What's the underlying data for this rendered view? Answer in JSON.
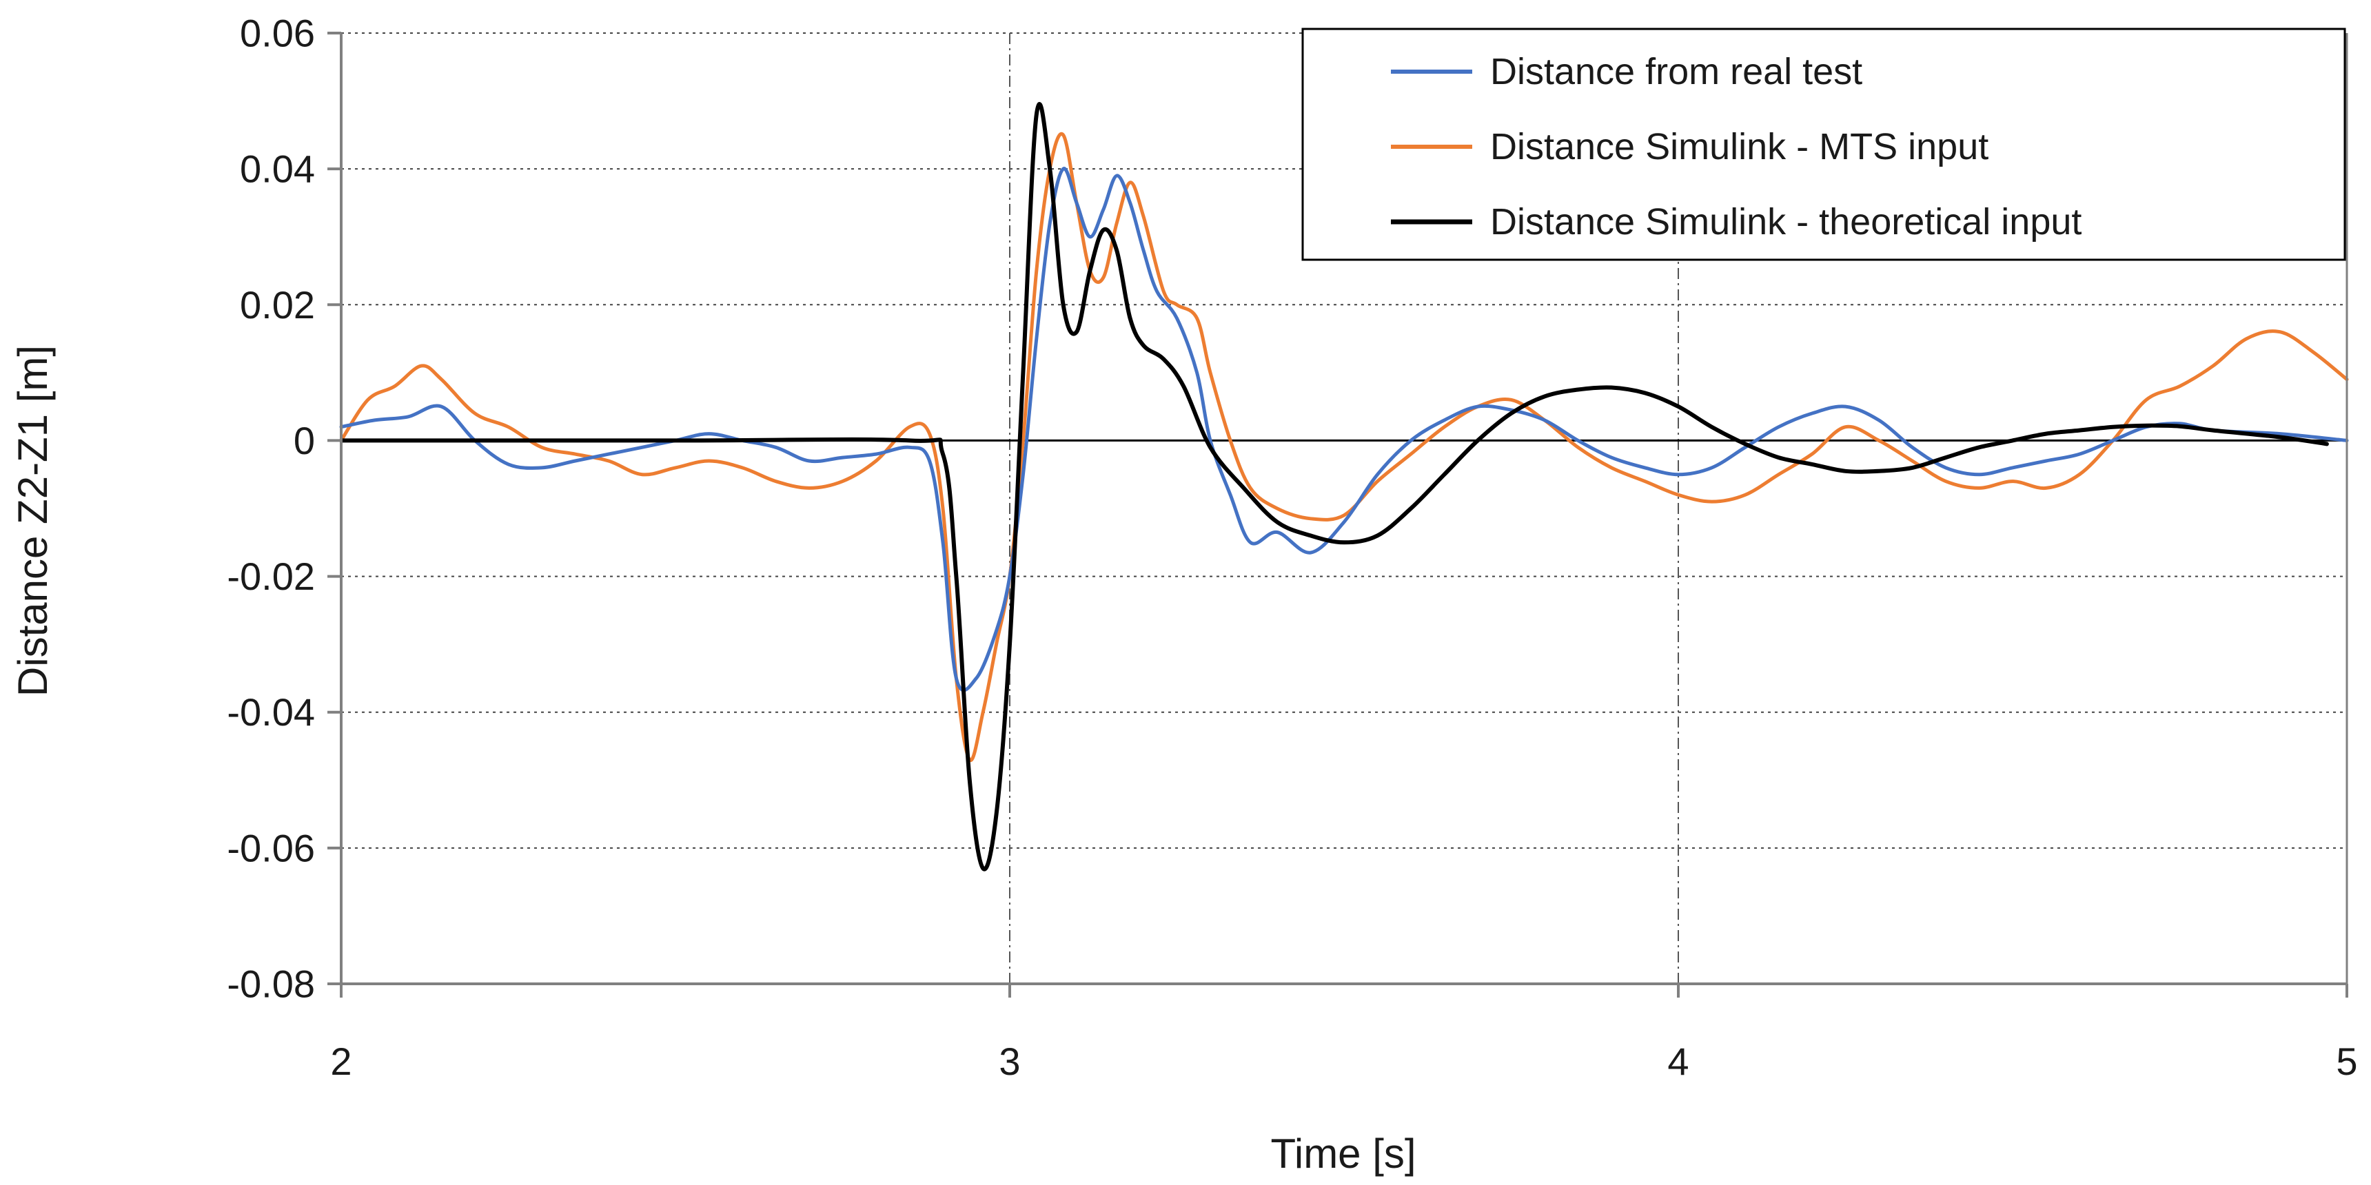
{
  "chart_data": {
    "type": "line",
    "title": "",
    "xlabel": "Time [s]",
    "ylabel": "Distance Z2-Z1 [m]",
    "xlim": [
      2,
      5
    ],
    "ylim": [
      -0.08,
      0.06
    ],
    "xticks": [
      2,
      3,
      4,
      5
    ],
    "xtick_labels": [
      "2",
      "3",
      "4",
      "5"
    ],
    "yticks": [
      0.06,
      0.04,
      0.02,
      0,
      -0.02,
      -0.04,
      -0.06,
      -0.08
    ],
    "ytick_labels": [
      "0.06",
      "0.04",
      "0.02",
      "0",
      "-0.02",
      "-0.04",
      "-0.06",
      "-0.08"
    ],
    "grid": {
      "horizontal": "dotted",
      "vertical": "dash-dot"
    },
    "legend": {
      "placement": "top-right"
    },
    "series": [
      {
        "name": "Distance from real test",
        "color": "#4472C4",
        "points": [
          [
            2.0,
            0.002
          ],
          [
            2.05,
            0.003
          ],
          [
            2.1,
            0.0035
          ],
          [
            2.15,
            0.005
          ],
          [
            2.2,
            0.0
          ],
          [
            2.25,
            -0.0035
          ],
          [
            2.3,
            -0.004
          ],
          [
            2.35,
            -0.003
          ],
          [
            2.4,
            -0.002
          ],
          [
            2.45,
            -0.001
          ],
          [
            2.5,
            0.0
          ],
          [
            2.55,
            0.001
          ],
          [
            2.6,
            0.0
          ],
          [
            2.65,
            -0.001
          ],
          [
            2.7,
            -0.003
          ],
          [
            2.75,
            -0.0025
          ],
          [
            2.8,
            -0.002
          ],
          [
            2.85,
            -0.001
          ],
          [
            2.88,
            -0.003
          ],
          [
            2.9,
            -0.015
          ],
          [
            2.92,
            -0.035
          ],
          [
            2.95,
            -0.035
          ],
          [
            2.98,
            -0.028
          ],
          [
            3.0,
            -0.02
          ],
          [
            3.02,
            -0.005
          ],
          [
            3.04,
            0.015
          ],
          [
            3.06,
            0.032
          ],
          [
            3.08,
            0.04
          ],
          [
            3.1,
            0.035
          ],
          [
            3.12,
            0.03
          ],
          [
            3.14,
            0.034
          ],
          [
            3.16,
            0.039
          ],
          [
            3.18,
            0.035
          ],
          [
            3.2,
            0.028
          ],
          [
            3.22,
            0.022
          ],
          [
            3.25,
            0.018
          ],
          [
            3.28,
            0.01
          ],
          [
            3.3,
            0.0
          ],
          [
            3.33,
            -0.008
          ],
          [
            3.36,
            -0.015
          ],
          [
            3.4,
            -0.0135
          ],
          [
            3.45,
            -0.0165
          ],
          [
            3.5,
            -0.012
          ],
          [
            3.55,
            -0.005
          ],
          [
            3.6,
            0.0
          ],
          [
            3.65,
            0.003
          ],
          [
            3.7,
            0.005
          ],
          [
            3.75,
            0.0045
          ],
          [
            3.8,
            0.003
          ],
          [
            3.85,
            0.0
          ],
          [
            3.9,
            -0.0025
          ],
          [
            3.95,
            -0.004
          ],
          [
            4.0,
            -0.005
          ],
          [
            4.05,
            -0.004
          ],
          [
            4.1,
            -0.001
          ],
          [
            4.15,
            0.002
          ],
          [
            4.2,
            0.004
          ],
          [
            4.25,
            0.005
          ],
          [
            4.3,
            0.003
          ],
          [
            4.35,
            -0.001
          ],
          [
            4.4,
            -0.004
          ],
          [
            4.45,
            -0.005
          ],
          [
            4.5,
            -0.004
          ],
          [
            4.55,
            -0.003
          ],
          [
            4.6,
            -0.002
          ],
          [
            4.65,
            0.0
          ],
          [
            4.7,
            0.002
          ],
          [
            4.75,
            0.0025
          ],
          [
            4.8,
            0.0015
          ],
          [
            4.9,
            0.001
          ],
          [
            5.0,
            0.0
          ]
        ]
      },
      {
        "name": "Distance Simulink - MTS input",
        "color": "#ED7D31",
        "points": [
          [
            2.0,
            0.0
          ],
          [
            2.04,
            0.006
          ],
          [
            2.08,
            0.008
          ],
          [
            2.12,
            0.011
          ],
          [
            2.15,
            0.009
          ],
          [
            2.2,
            0.004
          ],
          [
            2.25,
            0.002
          ],
          [
            2.3,
            -0.001
          ],
          [
            2.35,
            -0.002
          ],
          [
            2.4,
            -0.003
          ],
          [
            2.45,
            -0.005
          ],
          [
            2.5,
            -0.004
          ],
          [
            2.55,
            -0.003
          ],
          [
            2.6,
            -0.004
          ],
          [
            2.65,
            -0.006
          ],
          [
            2.7,
            -0.007
          ],
          [
            2.75,
            -0.006
          ],
          [
            2.8,
            -0.003
          ],
          [
            2.85,
            0.002
          ],
          [
            2.88,
            0.001
          ],
          [
            2.9,
            -0.01
          ],
          [
            2.92,
            -0.035
          ],
          [
            2.94,
            -0.047
          ],
          [
            2.96,
            -0.04
          ],
          [
            2.98,
            -0.03
          ],
          [
            3.0,
            -0.02
          ],
          [
            3.02,
            0.0
          ],
          [
            3.04,
            0.025
          ],
          [
            3.06,
            0.04
          ],
          [
            3.08,
            0.045
          ],
          [
            3.1,
            0.035
          ],
          [
            3.12,
            0.025
          ],
          [
            3.14,
            0.024
          ],
          [
            3.16,
            0.032
          ],
          [
            3.18,
            0.038
          ],
          [
            3.2,
            0.033
          ],
          [
            3.23,
            0.022
          ],
          [
            3.25,
            0.02
          ],
          [
            3.28,
            0.018
          ],
          [
            3.3,
            0.01
          ],
          [
            3.33,
            0.0
          ],
          [
            3.36,
            -0.007
          ],
          [
            3.4,
            -0.01
          ],
          [
            3.45,
            -0.0115
          ],
          [
            3.5,
            -0.011
          ],
          [
            3.55,
            -0.006
          ],
          [
            3.6,
            -0.002
          ],
          [
            3.65,
            0.002
          ],
          [
            3.7,
            0.005
          ],
          [
            3.75,
            0.006
          ],
          [
            3.8,
            0.003
          ],
          [
            3.85,
            -0.001
          ],
          [
            3.9,
            -0.004
          ],
          [
            3.95,
            -0.006
          ],
          [
            4.0,
            -0.008
          ],
          [
            4.05,
            -0.009
          ],
          [
            4.1,
            -0.008
          ],
          [
            4.15,
            -0.005
          ],
          [
            4.2,
            -0.002
          ],
          [
            4.25,
            0.002
          ],
          [
            4.3,
            0.0
          ],
          [
            4.35,
            -0.003
          ],
          [
            4.4,
            -0.006
          ],
          [
            4.45,
            -0.007
          ],
          [
            4.5,
            -0.006
          ],
          [
            4.55,
            -0.007
          ],
          [
            4.6,
            -0.005
          ],
          [
            4.65,
            0.0
          ],
          [
            4.7,
            0.006
          ],
          [
            4.75,
            0.008
          ],
          [
            4.8,
            0.011
          ],
          [
            4.85,
            0.015
          ],
          [
            4.9,
            0.016
          ],
          [
            4.95,
            0.013
          ],
          [
            5.0,
            0.009
          ]
        ]
      },
      {
        "name": "Distance Simulink - theoretical input",
        "color": "#000000",
        "points": [
          [
            2.0,
            0.0
          ],
          [
            2.5,
            0.0
          ],
          [
            2.85,
            0.0
          ],
          [
            2.9,
            -0.002
          ],
          [
            2.92,
            -0.02
          ],
          [
            2.94,
            -0.05
          ],
          [
            2.96,
            -0.063
          ],
          [
            2.98,
            -0.055
          ],
          [
            3.0,
            -0.03
          ],
          [
            3.02,
            0.01
          ],
          [
            3.04,
            0.048
          ],
          [
            3.06,
            0.04
          ],
          [
            3.08,
            0.02
          ],
          [
            3.1,
            0.016
          ],
          [
            3.12,
            0.025
          ],
          [
            3.14,
            0.031
          ],
          [
            3.16,
            0.028
          ],
          [
            3.18,
            0.018
          ],
          [
            3.2,
            0.014
          ],
          [
            3.23,
            0.012
          ],
          [
            3.26,
            0.008
          ],
          [
            3.3,
            -0.001
          ],
          [
            3.35,
            -0.007
          ],
          [
            3.4,
            -0.012
          ],
          [
            3.45,
            -0.014
          ],
          [
            3.5,
            -0.015
          ],
          [
            3.55,
            -0.014
          ],
          [
            3.6,
            -0.01
          ],
          [
            3.65,
            -0.005
          ],
          [
            3.7,
            0.0
          ],
          [
            3.75,
            0.004
          ],
          [
            3.8,
            0.0065
          ],
          [
            3.85,
            0.0075
          ],
          [
            3.9,
            0.0078
          ],
          [
            3.95,
            0.007
          ],
          [
            4.0,
            0.005
          ],
          [
            4.05,
            0.002
          ],
          [
            4.1,
            -0.0005
          ],
          [
            4.15,
            -0.0025
          ],
          [
            4.2,
            -0.0035
          ],
          [
            4.25,
            -0.0045
          ],
          [
            4.3,
            -0.0045
          ],
          [
            4.35,
            -0.004
          ],
          [
            4.4,
            -0.0025
          ],
          [
            4.45,
            -0.001
          ],
          [
            4.5,
            0.0
          ],
          [
            4.55,
            0.001
          ],
          [
            4.6,
            0.0015
          ],
          [
            4.65,
            0.002
          ],
          [
            4.7,
            0.0022
          ],
          [
            4.75,
            0.0021
          ],
          [
            4.8,
            0.0015
          ],
          [
            4.9,
            0.0005
          ],
          [
            4.97,
            -0.0005
          ]
        ]
      }
    ]
  }
}
